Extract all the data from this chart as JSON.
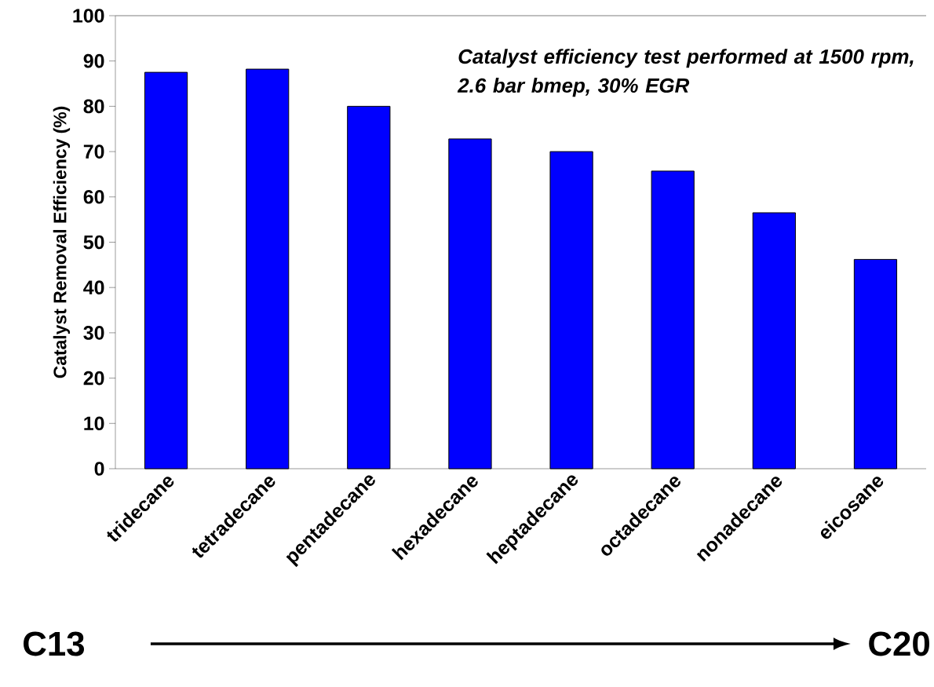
{
  "chart_data": {
    "type": "bar",
    "ylabel": "Catalyst Removal Efficiency (%)",
    "categories": [
      "tridecane",
      "tetradecane",
      "pentadecane",
      "hexadecane",
      "heptadecane",
      "octadecane",
      "nonadecane",
      "eicosane"
    ],
    "values": [
      87.5,
      88.2,
      80.0,
      72.8,
      70.0,
      65.7,
      56.5,
      46.2
    ],
    "color": "#0000ff",
    "ylim": [
      0,
      100
    ],
    "yticks": [
      0,
      10,
      20,
      30,
      40,
      50,
      60,
      70,
      80,
      90,
      100
    ],
    "annotations": [
      "Catalyst efficiency test performed at 1500 rpm, 2.6 bar bmep, 30% EGR",
      "C13",
      "C20"
    ]
  }
}
